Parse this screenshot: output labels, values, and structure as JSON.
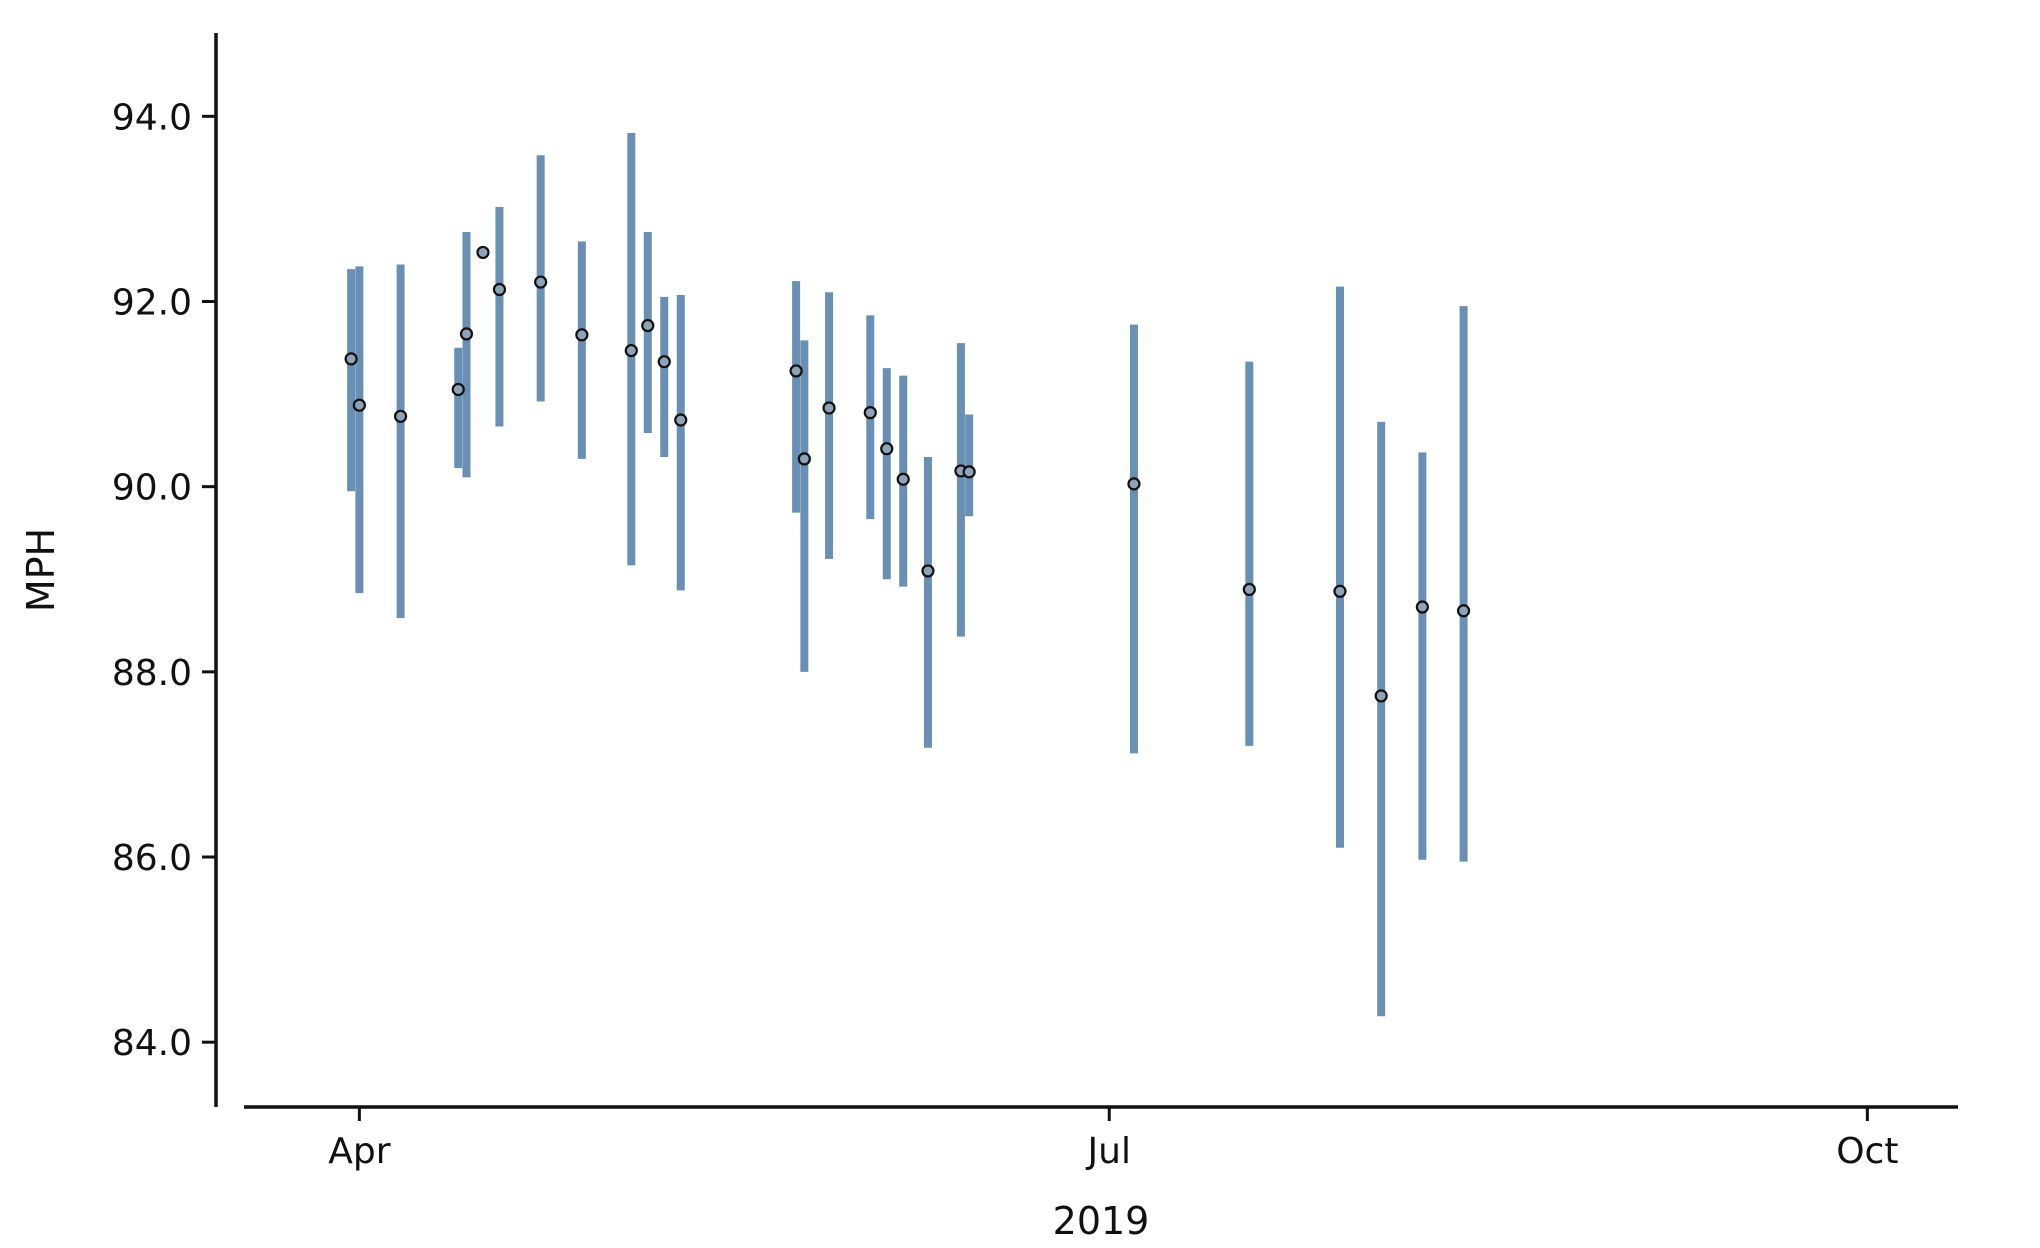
{
  "chart_data": {
    "type": "scatter",
    "xlabel": "2019",
    "ylabel": "MPH",
    "x_axis": {
      "range": [
        "2019-03-18",
        "2019-10-12"
      ],
      "ticks": [
        {
          "date": "2019-04-01",
          "label": "Apr"
        },
        {
          "date": "2019-07-01",
          "label": "Jul"
        },
        {
          "date": "2019-10-01",
          "label": "Oct"
        }
      ]
    },
    "y_axis": {
      "range": [
        83.3,
        94.9
      ],
      "ticks": [
        84.0,
        86.0,
        88.0,
        90.0,
        92.0,
        94.0
      ],
      "tick_labels": [
        "84.0",
        "86.0",
        "88.0",
        "90.0",
        "92.0",
        "94.0"
      ]
    },
    "grid": false,
    "legend": "none",
    "colors": {
      "error_bar": "#6a8fb5",
      "point_fill": "#8fa3b8",
      "point_stroke": "#111111",
      "axis": "#111111"
    },
    "points": [
      {
        "date": "2019-03-31",
        "value": 91.38,
        "low": 89.95,
        "high": 92.35
      },
      {
        "date": "2019-04-01",
        "value": 90.88,
        "low": 88.85,
        "high": 92.38
      },
      {
        "date": "2019-04-06",
        "value": 90.76,
        "low": 88.58,
        "high": 92.4
      },
      {
        "date": "2019-04-13",
        "value": 91.05,
        "low": 90.2,
        "high": 91.5
      },
      {
        "date": "2019-04-14",
        "value": 91.65,
        "low": 90.1,
        "high": 92.75
      },
      {
        "date": "2019-04-16",
        "value": 92.53,
        "low": null,
        "high": null
      },
      {
        "date": "2019-04-18",
        "value": 92.13,
        "low": 90.65,
        "high": 93.02
      },
      {
        "date": "2019-04-23",
        "value": 92.21,
        "low": 90.92,
        "high": 93.58
      },
      {
        "date": "2019-04-28",
        "value": 91.64,
        "low": 90.3,
        "high": 92.65
      },
      {
        "date": "2019-05-04",
        "value": 91.47,
        "low": 89.15,
        "high": 93.82
      },
      {
        "date": "2019-05-06",
        "value": 91.74,
        "low": 90.58,
        "high": 92.75
      },
      {
        "date": "2019-05-08",
        "value": 91.35,
        "low": 90.32,
        "high": 92.05
      },
      {
        "date": "2019-05-10",
        "value": 90.72,
        "low": 88.88,
        "high": 92.07
      },
      {
        "date": "2019-05-24",
        "value": 91.25,
        "low": 89.72,
        "high": 92.22
      },
      {
        "date": "2019-05-25",
        "value": 90.3,
        "low": 88.0,
        "high": 91.58
      },
      {
        "date": "2019-05-28",
        "value": 90.85,
        "low": 89.22,
        "high": 92.1
      },
      {
        "date": "2019-06-02",
        "value": 90.8,
        "low": 89.65,
        "high": 91.85
      },
      {
        "date": "2019-06-04",
        "value": 90.41,
        "low": 89.0,
        "high": 91.28
      },
      {
        "date": "2019-06-06",
        "value": 90.08,
        "low": 88.92,
        "high": 91.2
      },
      {
        "date": "2019-06-09",
        "value": 89.09,
        "low": 87.18,
        "high": 90.32
      },
      {
        "date": "2019-06-13",
        "value": 90.17,
        "low": 88.38,
        "high": 91.55
      },
      {
        "date": "2019-06-14",
        "value": 90.16,
        "low": 89.68,
        "high": 90.78
      },
      {
        "date": "2019-07-04",
        "value": 90.03,
        "low": 87.12,
        "high": 91.75
      },
      {
        "date": "2019-07-18",
        "value": 88.89,
        "low": 87.2,
        "high": 91.35
      },
      {
        "date": "2019-07-29",
        "value": 88.87,
        "low": 86.1,
        "high": 92.16
      },
      {
        "date": "2019-08-03",
        "value": 87.74,
        "low": 84.28,
        "high": 90.7
      },
      {
        "date": "2019-08-08",
        "value": 88.7,
        "low": 85.97,
        "high": 90.37
      },
      {
        "date": "2019-08-13",
        "value": 88.66,
        "low": 85.95,
        "high": 91.95
      }
    ]
  }
}
